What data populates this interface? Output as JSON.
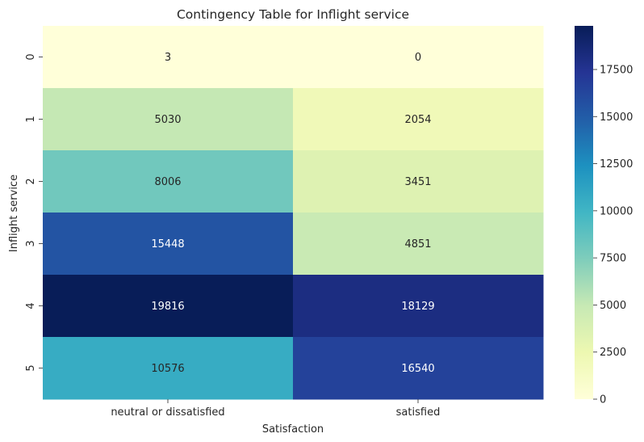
{
  "chart_data": {
    "type": "heatmap",
    "title": "Contingency Table for Inflight service",
    "xlabel": "Satisfaction",
    "ylabel": "Inflight service",
    "x_categories": [
      "neutral or dissatisfied",
      "satisfied"
    ],
    "y_categories": [
      "0",
      "1",
      "2",
      "3",
      "4",
      "5"
    ],
    "values": [
      [
        3,
        0
      ],
      [
        5030,
        2054
      ],
      [
        8006,
        3451
      ],
      [
        15448,
        4851
      ],
      [
        19816,
        18129
      ],
      [
        10576,
        16540
      ]
    ],
    "colormap": "YlGnBu",
    "colorbar": {
      "range": [
        0,
        19816
      ],
      "ticks": [
        "0",
        "2500",
        "5000",
        "7500",
        "10000",
        "12500",
        "15000",
        "17500"
      ]
    },
    "label_colors": {
      "dark": "#262626",
      "light": "#ffffff"
    }
  }
}
